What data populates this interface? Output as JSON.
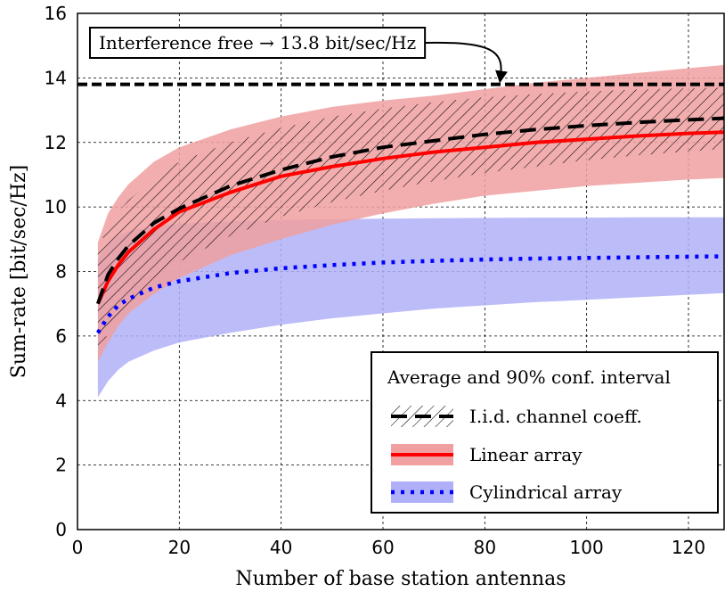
{
  "chart_data": {
    "type": "line",
    "xlabel": "Number of base station antennas",
    "ylabel": "Sum-rate [bit/sec/Hz]",
    "xlim": [
      0,
      127
    ],
    "ylim": [
      0,
      16
    ],
    "xticks": [
      0,
      20,
      40,
      60,
      80,
      100,
      120
    ],
    "yticks": [
      0,
      2,
      4,
      6,
      8,
      10,
      12,
      14,
      16
    ],
    "grid": true,
    "x": [
      4,
      6,
      8,
      10,
      15,
      20,
      30,
      40,
      50,
      60,
      70,
      80,
      90,
      100,
      110,
      120,
      127
    ],
    "series": [
      {
        "name": "I.i.d. channel coeff.",
        "color": "#000000",
        "style": "dashed",
        "band_fill": "hatched",
        "mean": [
          7.0,
          7.9,
          8.4,
          8.8,
          9.5,
          9.95,
          10.65,
          11.15,
          11.55,
          11.85,
          12.05,
          12.25,
          12.4,
          12.52,
          12.62,
          12.7,
          12.75
        ],
        "lower": [
          5.4,
          6.1,
          6.6,
          7.0,
          7.8,
          8.3,
          9.1,
          9.7,
          10.15,
          10.5,
          10.8,
          11.05,
          11.25,
          11.45,
          11.6,
          11.72,
          11.8
        ],
        "upper": [
          8.7,
          9.4,
          9.85,
          10.2,
          10.9,
          11.4,
          12.0,
          12.45,
          12.8,
          13.05,
          13.25,
          13.4,
          13.5,
          13.58,
          13.64,
          13.68,
          13.7
        ]
      },
      {
        "name": "Linear array",
        "color": "#ff0000",
        "band_color": "#f0a0a0",
        "style": "solid",
        "mean": [
          7.0,
          7.7,
          8.2,
          8.6,
          9.3,
          9.85,
          10.45,
          10.95,
          11.25,
          11.5,
          11.7,
          11.85,
          12.0,
          12.1,
          12.2,
          12.28,
          12.32
        ],
        "lower": [
          5.2,
          5.8,
          6.3,
          6.7,
          7.3,
          7.8,
          8.5,
          9.0,
          9.45,
          9.8,
          10.1,
          10.35,
          10.5,
          10.65,
          10.75,
          10.85,
          10.9
        ],
        "upper": [
          8.9,
          9.8,
          10.3,
          10.7,
          11.4,
          11.85,
          12.4,
          12.8,
          13.1,
          13.3,
          13.45,
          13.65,
          13.85,
          14.0,
          14.15,
          14.3,
          14.4
        ]
      },
      {
        "name": "Cylindrical array",
        "color": "#0000ff",
        "band_color": "#b0b0f8",
        "style": "dotted",
        "mean": [
          6.1,
          6.6,
          6.95,
          7.15,
          7.5,
          7.7,
          7.95,
          8.1,
          8.2,
          8.28,
          8.33,
          8.37,
          8.4,
          8.42,
          8.44,
          8.46,
          8.47
        ],
        "lower": [
          4.1,
          4.6,
          4.95,
          5.2,
          5.55,
          5.8,
          6.1,
          6.35,
          6.55,
          6.7,
          6.85,
          6.95,
          7.05,
          7.12,
          7.2,
          7.28,
          7.33
        ],
        "upper": [
          8.4,
          8.85,
          9.1,
          9.25,
          9.4,
          9.48,
          9.55,
          9.6,
          9.62,
          9.64,
          9.65,
          9.66,
          9.67,
          9.67,
          9.68,
          9.68,
          9.68
        ]
      }
    ],
    "reference_line": {
      "y": 13.8,
      "color": "#000000",
      "style": "dashed"
    },
    "annotation": {
      "text": "Interference free → 13.8 bit/sec/Hz",
      "arrow_to": [
        83,
        13.8
      ]
    },
    "legend": {
      "title": "Average and 90% conf. interval",
      "placement": "bottom-right",
      "entries": [
        "I.i.d. channel coeff.",
        "Linear array",
        "Cylindrical array"
      ]
    }
  }
}
